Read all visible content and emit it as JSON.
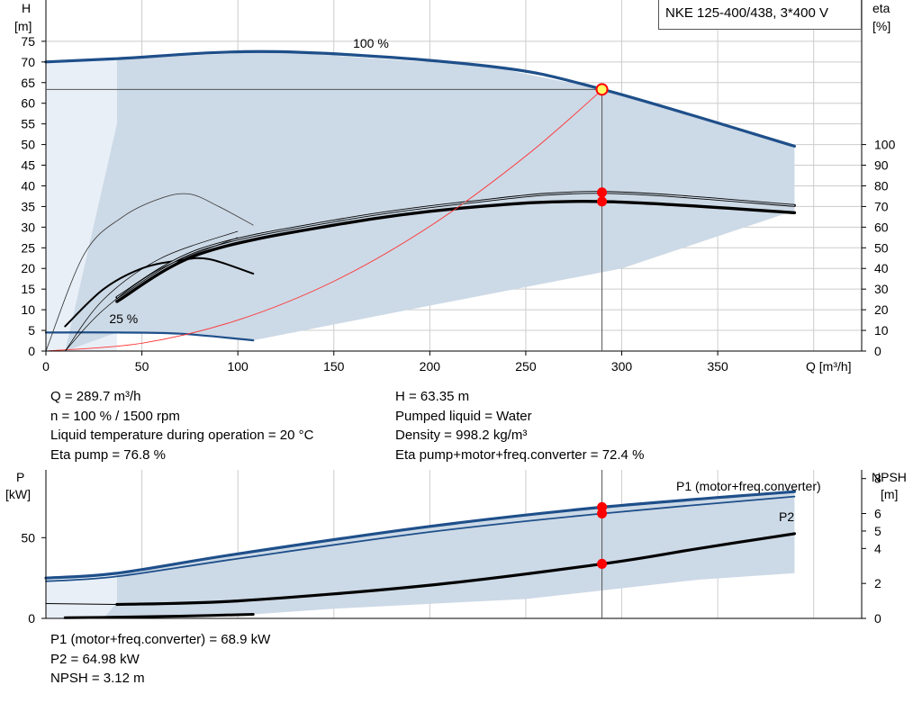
{
  "title": "NKE 125-400/438, 3*400 V",
  "colors": {
    "envelope": "#ccd9e6",
    "envelope_light": "#e8eff7",
    "blue_curve": "#1e4f8a",
    "duty": "#ff0000",
    "system_curve": "#ff3333",
    "grid": "#cccccc"
  },
  "chart_data": [
    {
      "type": "line",
      "name": "head-efficiency",
      "xlabel": "Q [m³/h]",
      "ylabel_left": [
        "H",
        "[m]"
      ],
      "ylabel_right": [
        "eta",
        "[%]"
      ],
      "x_ticks": [
        "0",
        "50",
        "100",
        "150",
        "200",
        "250",
        "300",
        "350"
      ],
      "y_ticks_left": [
        "0",
        "5",
        "10",
        "15",
        "20",
        "25",
        "30",
        "35",
        "40",
        "45",
        "50",
        "55",
        "60",
        "65",
        "70",
        "75"
      ],
      "y_ticks_right": [
        "0",
        "10",
        "20",
        "30",
        "40",
        "50",
        "60",
        "70",
        "80",
        "90",
        "100"
      ],
      "xlim": [
        0,
        425
      ],
      "ylim": [
        0,
        85
      ],
      "eta_range": [
        0,
        100
      ],
      "curve_labels": [
        "100 %",
        "25 %"
      ],
      "series": [
        {
          "role": "head_100",
          "x": [
            0,
            37,
            120,
            230,
            290,
            390
          ],
          "y": [
            70,
            70.8,
            72.5,
            69,
            63.35,
            49.6
          ]
        },
        {
          "role": "head_25",
          "x": [
            0,
            37,
            70,
            108
          ],
          "y": [
            4.5,
            4.5,
            4.2,
            2.6
          ]
        },
        {
          "role": "eta_pump",
          "x": [
            37,
            80,
            150,
            220,
            290,
            390
          ],
          "y": [
            26,
            49,
            63,
            72,
            76.8,
            70.5
          ]
        },
        {
          "role": "eta_total",
          "x": [
            37,
            80,
            150,
            220,
            290,
            390
          ],
          "y": [
            24,
            47,
            61,
            69.5,
            72.4,
            67
          ]
        },
        {
          "role": "eta_partload_1",
          "x": [
            10,
            30,
            50,
            70,
            85,
            108
          ],
          "y": [
            12,
            30,
            40,
            44,
            44.5,
            37.5
          ]
        },
        {
          "role": "eta_partload_2",
          "x": [
            0,
            20,
            40,
            60,
            75,
            90,
            108
          ],
          "y": [
            0,
            47,
            65,
            74,
            76,
            70,
            61
          ]
        },
        {
          "role": "system_curve",
          "x": [
            0,
            50,
            100,
            150,
            200,
            250,
            290
          ],
          "y": [
            0,
            1.9,
            7.5,
            16.9,
            30.2,
            47.2,
            63.35
          ]
        }
      ],
      "duty_point": {
        "Q": 289.7,
        "H": 63.35,
        "eta_pump": 76.8,
        "eta_total": 72.4
      }
    },
    {
      "type": "line",
      "name": "power-npsh",
      "ylabel_left": [
        "P",
        "[kW]"
      ],
      "ylabel_right": [
        "NPSH",
        "[m]"
      ],
      "y_ticks_left": [
        "0",
        "50"
      ],
      "y_ticks_right": [
        "0",
        "2",
        "4",
        "5",
        "6",
        "8"
      ],
      "ylim": [
        0,
        92
      ],
      "npsh_range": [
        0,
        8.5
      ],
      "legend": [
        "P1 (motor+freq.converter)",
        "P2"
      ],
      "series": [
        {
          "role": "P1",
          "x": [
            0,
            37,
            100,
            200,
            290,
            390
          ],
          "y": [
            25,
            28,
            40,
            57,
            68.9,
            78.5
          ]
        },
        {
          "role": "P2",
          "x": [
            0,
            37,
            100,
            200,
            290,
            390
          ],
          "y": [
            23,
            26,
            37,
            53.5,
            64.98,
            75.5
          ]
        },
        {
          "role": "P_25",
          "x": [
            10,
            37,
            70,
            108
          ],
          "y": [
            0.4,
            0.8,
            1.4,
            2.5
          ]
        },
        {
          "role": "NPSH",
          "x": [
            37,
            100,
            200,
            290,
            340,
            390
          ],
          "y": [
            0.8,
            1.0,
            1.9,
            3.12,
            4.0,
            4.85
          ]
        }
      ],
      "duty_point": {
        "Q": 289.7,
        "P1": 68.9,
        "P2": 64.98,
        "NPSH": 3.12
      }
    }
  ],
  "info_top_left": [
    "Q = 289.7 m³/h",
    "n = 100 % / 1500 rpm",
    "Liquid temperature during operation = 20 °C",
    "Eta pump = 76.8 %"
  ],
  "info_top_right": [
    "H = 63.35 m",
    "Pumped liquid = Water",
    "Density = 998.2 kg/m³",
    "Eta pump+motor+freq.converter = 72.4 %"
  ],
  "info_bottom": [
    "P1 (motor+freq.converter) = 68.9 kW",
    "P2 = 64.98 kW",
    "NPSH = 3.12 m"
  ]
}
